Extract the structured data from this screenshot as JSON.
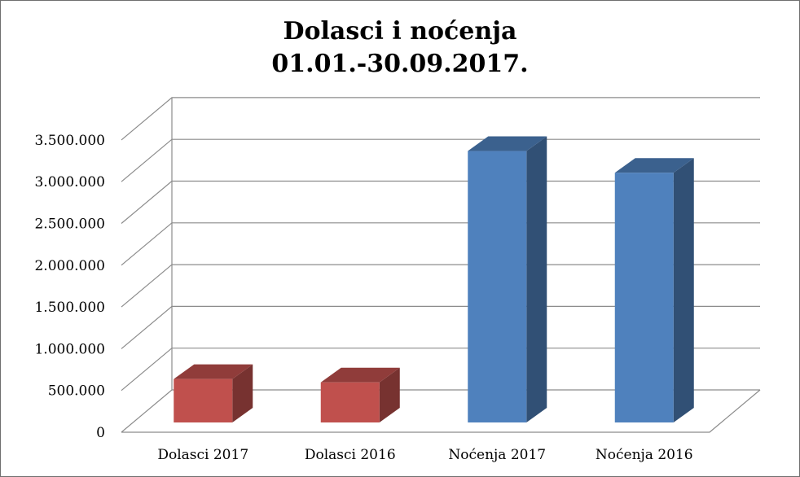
{
  "chart_data": {
    "type": "bar",
    "title": [
      "Dolasci i noćenja",
      "01.01.-30.09.2017."
    ],
    "categories": [
      "Dolasci 2017",
      "Dolasci 2016",
      "Noćenja 2017",
      "Noćenja 2016"
    ],
    "values": [
      520000,
      480000,
      3250000,
      2990000
    ],
    "bar_colors": [
      "#C0504D",
      "#C0504D",
      "#4F81BD",
      "#4F81BD"
    ],
    "ylim": [
      0,
      3500000
    ],
    "yticks": [
      0,
      500000,
      1000000,
      1500000,
      2000000,
      2500000,
      3000000,
      3500000
    ],
    "ytick_labels": [
      "0",
      "500.000",
      "1.000.000",
      "1.500.000",
      "2.000.000",
      "2.500.000",
      "3.000.000",
      "3.500.000"
    ],
    "xlabel": "",
    "ylabel": "",
    "grid": true,
    "legend": false,
    "style": "3d"
  }
}
